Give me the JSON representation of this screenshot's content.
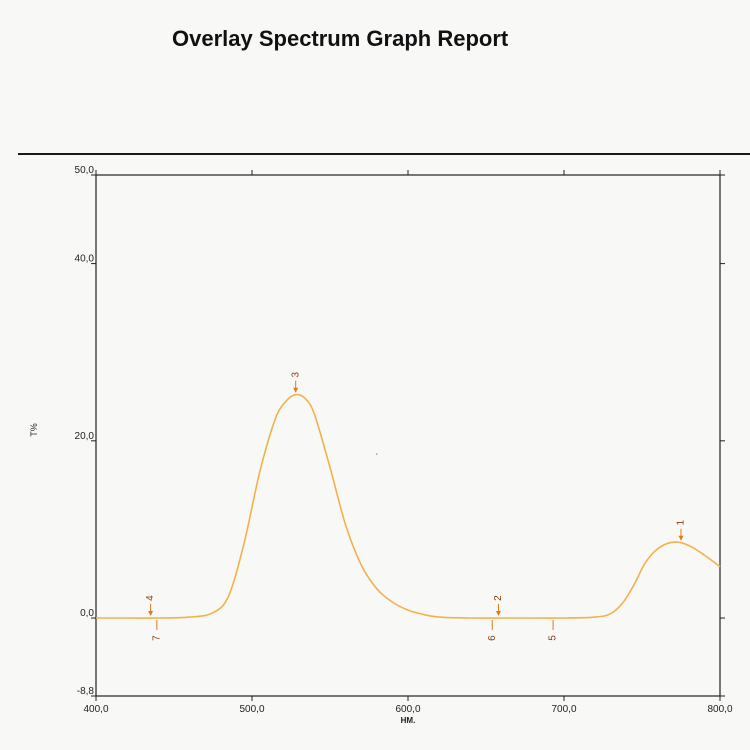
{
  "report": {
    "title": "Overlay Spectrum Graph Report"
  },
  "colors": {
    "curve": "#f2b24a",
    "marker": "#e07a1f",
    "axis": "#222222"
  },
  "chart_data": {
    "type": "line",
    "title": "",
    "xlabel": "НМ.",
    "ylabel": "T%",
    "xlim": [
      400,
      800
    ],
    "ylim": [
      -8.8,
      50
    ],
    "x_ticks": [
      {
        "value": 400,
        "label": "400,0"
      },
      {
        "value": 500,
        "label": "500,0"
      },
      {
        "value": 600,
        "label": "600,0"
      },
      {
        "value": 700,
        "label": "700,0"
      },
      {
        "value": 800,
        "label": "800,0"
      }
    ],
    "y_ticks": [
      {
        "value": 50,
        "label": "50,0"
      },
      {
        "value": 40,
        "label": "40,0"
      },
      {
        "value": 20,
        "label": "20,0"
      },
      {
        "value": 0,
        "label": "0,0"
      },
      {
        "value": -8.8,
        "label": "-8,8"
      }
    ],
    "grid": false,
    "series": [
      {
        "x": [
          400,
          420,
          440,
          460,
          475,
          485,
          495,
          505,
          515,
          522,
          528,
          534,
          540,
          550,
          560,
          570,
          580,
          590,
          600,
          610,
          620,
          640,
          660,
          680,
          700,
          720,
          730,
          738,
          745,
          752,
          760,
          768,
          775,
          782,
          790,
          800
        ],
        "y": [
          0,
          0,
          0,
          0.1,
          0.6,
          2.5,
          8.5,
          16.5,
          22.5,
          24.5,
          25.2,
          24.8,
          23,
          17,
          10.5,
          6,
          3.3,
          1.8,
          0.9,
          0.4,
          0.1,
          0,
          0,
          0,
          0,
          0.1,
          0.5,
          1.8,
          3.8,
          6.2,
          7.8,
          8.5,
          8.5,
          8,
          7.1,
          5.8
        ]
      }
    ],
    "markers": [
      {
        "label": "1",
        "x": 775,
        "y": 8.5,
        "position": "above"
      },
      {
        "label": "2",
        "x": 658,
        "y": 0,
        "position": "above"
      },
      {
        "label": "3",
        "x": 528,
        "y": 25.2,
        "position": "above"
      },
      {
        "label": "4",
        "x": 435,
        "y": 0,
        "position": "above"
      },
      {
        "label": "5",
        "x": 693,
        "y": 0,
        "position": "below"
      },
      {
        "label": "6",
        "x": 654,
        "y": 0,
        "position": "below"
      },
      {
        "label": "7",
        "x": 439,
        "y": 0,
        "position": "below"
      }
    ]
  }
}
